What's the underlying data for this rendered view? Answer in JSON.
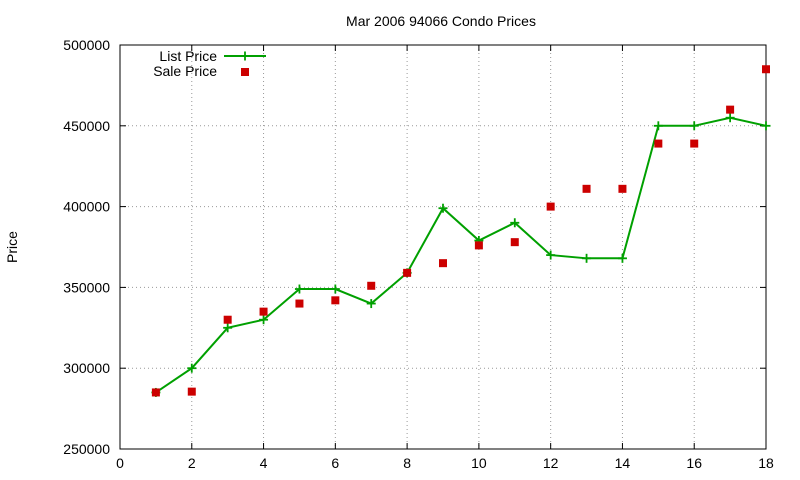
{
  "chart_data": {
    "type": "line",
    "title": "Mar 2006 94066 Condo Prices",
    "xlabel": "",
    "ylabel": "Price",
    "xlim": [
      0,
      18
    ],
    "ylim": [
      250000,
      500000
    ],
    "xticks": [
      "0",
      "2",
      "4",
      "6",
      "8",
      "10",
      "12",
      "14",
      "16",
      "18"
    ],
    "yticks": [
      "250000",
      "300000",
      "350000",
      "400000",
      "450000",
      "500000"
    ],
    "grid": true,
    "legend_position": "top-left",
    "series": [
      {
        "name": "List Price",
        "style": "line-plus",
        "color": "#00a000",
        "x": [
          1,
          2,
          3,
          4,
          5,
          6,
          7,
          8,
          9,
          10,
          11,
          12,
          13,
          14,
          15,
          16,
          17,
          18
        ],
        "y": [
          285000,
          300000,
          325000,
          330000,
          349000,
          349000,
          340000,
          359000,
          399000,
          379000,
          390000,
          370000,
          368000,
          368000,
          450000,
          450000,
          455000,
          450000
        ]
      },
      {
        "name": "Sale Price",
        "style": "square",
        "color": "#cc0000",
        "x": [
          1,
          2,
          3,
          4,
          5,
          6,
          7,
          8,
          9,
          10,
          11,
          12,
          13,
          14,
          15,
          16,
          17,
          18
        ],
        "y": [
          285000,
          285500,
          330000,
          335000,
          340000,
          342000,
          351000,
          359000,
          365000,
          376000,
          378000,
          400000,
          411000,
          411000,
          439000,
          439000,
          460000,
          485000
        ]
      }
    ]
  }
}
